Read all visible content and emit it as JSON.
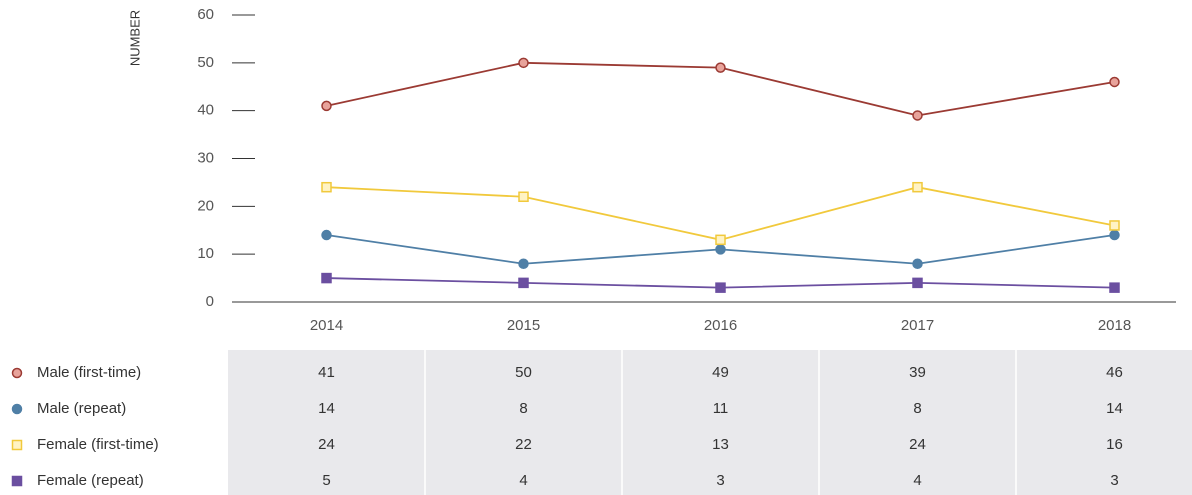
{
  "chart_data": {
    "type": "line",
    "y_label": "NUMBER",
    "categories": [
      "2014",
      "2015",
      "2016",
      "2017",
      "2018"
    ],
    "series": [
      {
        "name": "Male (first-time)",
        "color": "#9b3a33",
        "fill": "#e8a39b",
        "marker": "circle",
        "values": [
          41,
          50,
          49,
          39,
          46
        ]
      },
      {
        "name": "Male (repeat)",
        "color": "#4f7fa6",
        "fill": "#4f7fa6",
        "marker": "circle",
        "values": [
          14,
          8,
          11,
          8,
          14
        ]
      },
      {
        "name": "Female (first-time)",
        "color": "#f1c93c",
        "fill": "#fff3c4",
        "marker": "square",
        "values": [
          24,
          22,
          13,
          24,
          16
        ]
      },
      {
        "name": "Female (repeat)",
        "color": "#6b4fa0",
        "fill": "#6b4fa0",
        "marker": "square",
        "values": [
          5,
          4,
          3,
          4,
          3
        ]
      }
    ],
    "ylim": [
      0,
      60
    ],
    "yticks": [
      0,
      10,
      20,
      30,
      40,
      50,
      60
    ]
  }
}
